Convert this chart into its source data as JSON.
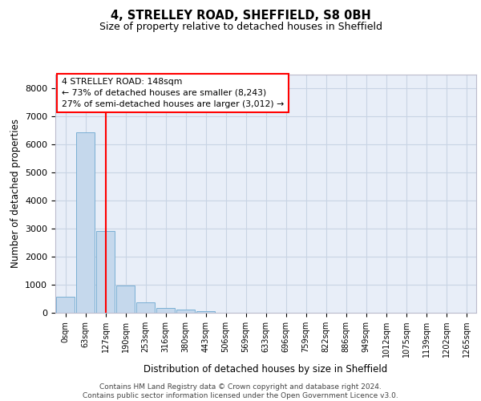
{
  "title": "4, STRELLEY ROAD, SHEFFIELD, S8 0BH",
  "subtitle": "Size of property relative to detached houses in Sheffield",
  "xlabel": "Distribution of detached houses by size in Sheffield",
  "ylabel": "Number of detached properties",
  "bar_color": "#c5d8ec",
  "bar_edge_color": "#7aafd4",
  "background_color": "#e8eef8",
  "grid_color": "#c8d4e4",
  "categories": [
    "0sqm",
    "63sqm",
    "127sqm",
    "190sqm",
    "253sqm",
    "316sqm",
    "380sqm",
    "443sqm",
    "506sqm",
    "569sqm",
    "633sqm",
    "696sqm",
    "759sqm",
    "822sqm",
    "886sqm",
    "949sqm",
    "1012sqm",
    "1075sqm",
    "1139sqm",
    "1202sqm",
    "1265sqm"
  ],
  "values": [
    560,
    6420,
    2920,
    960,
    380,
    175,
    105,
    70,
    0,
    0,
    0,
    0,
    0,
    0,
    0,
    0,
    0,
    0,
    0,
    0,
    0
  ],
  "ylim": [
    0,
    8500
  ],
  "yticks": [
    0,
    1000,
    2000,
    3000,
    4000,
    5000,
    6000,
    7000,
    8000
  ],
  "property_label": "4 STRELLEY ROAD: 148sqm",
  "annotation_line1": "← 73% of detached houses are smaller (8,243)",
  "annotation_line2": "27% of semi-detached houses are larger (3,012) →",
  "vline_x_index": 2.0,
  "footer_line1": "Contains HM Land Registry data © Crown copyright and database right 2024.",
  "footer_line2": "Contains public sector information licensed under the Open Government Licence v3.0."
}
